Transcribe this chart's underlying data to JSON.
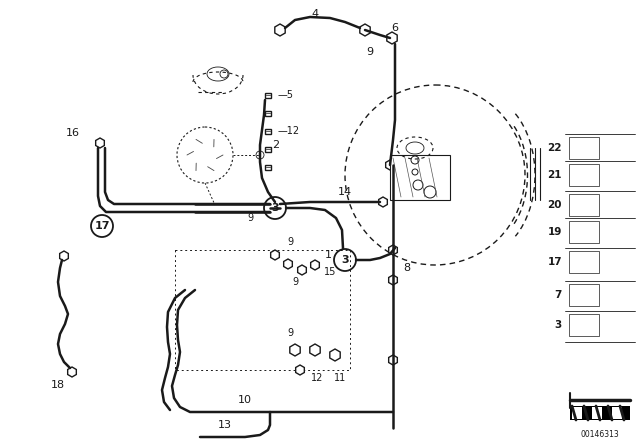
{
  "bg_color": "#ffffff",
  "line_color": "#1a1a1a",
  "fig_width": 6.4,
  "fig_height": 4.48,
  "dpi": 100,
  "watermark": "00146313"
}
